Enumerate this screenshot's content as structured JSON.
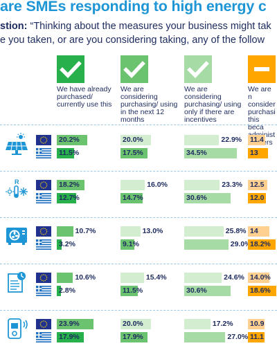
{
  "title": "are SMEs responding to high energy c",
  "question": {
    "label": "stion:",
    "line1_rest": " “Thinking about the measures your business might tak",
    "line2": "e you taken, or are you considering taking, any of the follow"
  },
  "columns": [
    {
      "label": "We have already purchased/ currently use this",
      "icon": "check-icon"
    },
    {
      "label": "We are considering purchasing/ using in the next 12 months",
      "icon": "check-icon"
    },
    {
      "label": "We are considering purchasing/ using only if there are incentives",
      "icon": "check-icon"
    },
    {
      "label": "We are n consider purchasi this beca administ barriers",
      "icon": "minus-icon"
    }
  ],
  "colors": {
    "title_blue": "#1e96d6",
    "navy": "#1c2a5e",
    "green_dark": "#27b04b",
    "green_mid": "#6cc36f",
    "green_light": "#a6dba5",
    "green_pale": "#d2edd0",
    "orange": "#ffa600",
    "orange_light": "#ffd08f",
    "icon_blue": "#1e96d6",
    "eu_blue": "#20318e",
    "eu_star": "#ffdd00",
    "greece_blue": "#1f6fc0"
  },
  "chart_data": {
    "type": "bar",
    "title": "are SMEs responding to high energy c",
    "categories": [
      "solar-panel-icon",
      "heat-pump-icon",
      "air-conditioner-icon",
      "smart-meter-icon",
      "ev-charger-icon"
    ],
    "series": [
      {
        "name": "We have already purchased/ currently use this",
        "eu": [
          20.2,
          18.2,
          10.7,
          10.6,
          23.9
        ],
        "greece": [
          11.5,
          12.7,
          3.2,
          2.8,
          17.9
        ]
      },
      {
        "name": "We are considering purchasing/ using in the next 12 months",
        "eu": [
          20.0,
          16.0,
          13.0,
          15.4,
          20.0
        ],
        "greece": [
          17.5,
          14.7,
          9.1,
          11.5,
          17.9
        ]
      },
      {
        "name": "We are considering purchasing/ using only if there are incentives",
        "eu": [
          22.9,
          23.3,
          25.8,
          24.6,
          17.2
        ],
        "greece": [
          34.5,
          30.6,
          29.0,
          30.6,
          27.0
        ]
      },
      {
        "name": "We are n consider purchasi this beca administ barriers",
        "eu": [
          11.4,
          12.5,
          14.0,
          14.0,
          10.9
        ],
        "greece": [
          13.0,
          12.0,
          18.2,
          18.6,
          11.1
        ]
      }
    ],
    "labels": {
      "eu": [
        [
          "20.2%",
          "20.0%",
          "22.9%",
          "11.4"
        ],
        [
          "18.2%",
          "16.0%",
          "23.3%",
          "12.5"
        ],
        [
          "10.7%",
          "13.0%",
          "25.8%",
          "14"
        ],
        [
          "10.6%",
          "15.4%",
          "24.6%",
          "14.0%"
        ],
        [
          "23.9%",
          "20.0%",
          "17.2%",
          "10.9"
        ]
      ],
      "greece": [
        [
          "11.5%",
          "17.5%",
          "34.5%",
          "13"
        ],
        [
          "12.7%",
          "14.7%",
          "30.6%",
          "12.0"
        ],
        [
          "3.2%",
          "9.1%",
          "29.0%",
          "18.2%"
        ],
        [
          "2.8%",
          "11.5%",
          "30.6%",
          "18.6%"
        ],
        [
          "17.9%",
          "17.9%",
          "27.0%",
          "11.1"
        ]
      ]
    },
    "flags": [
      "eu-flag",
      "greece-flag"
    ]
  }
}
